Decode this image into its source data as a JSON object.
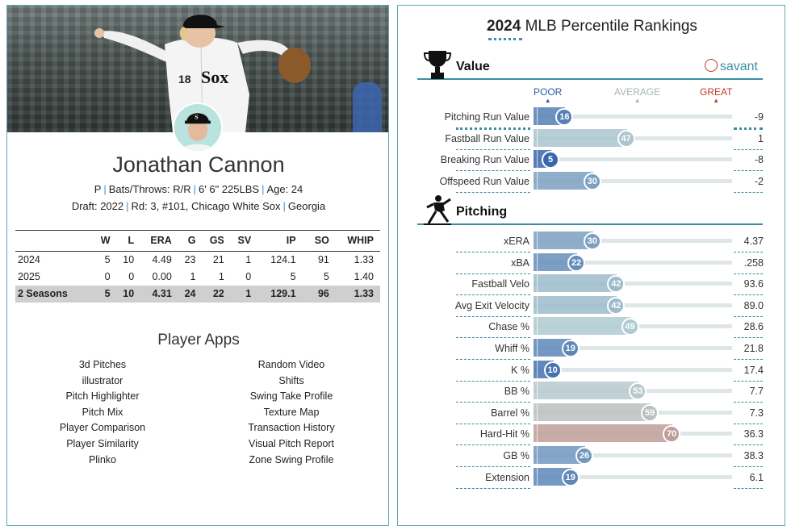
{
  "player": {
    "name": "Jonathan Cannon",
    "bio_line1": [
      "P",
      "Bats/Throws: R/R",
      "6' 6\" 225LBS",
      "Age: 24"
    ],
    "bio_line2": [
      "Draft: 2022",
      "Rd: 3, #101, Chicago White Sox",
      "Georgia"
    ]
  },
  "stats": {
    "headers": [
      "",
      "W",
      "L",
      "ERA",
      "G",
      "GS",
      "SV",
      "IP",
      "SO",
      "WHIP"
    ],
    "rows": [
      [
        "2024",
        "5",
        "10",
        "4.49",
        "23",
        "21",
        "1",
        "124.1",
        "91",
        "1.33"
      ],
      [
        "2025",
        "0",
        "0",
        "0.00",
        "1",
        "1",
        "0",
        "5",
        "5",
        "1.40"
      ]
    ],
    "total": [
      "2 Seasons",
      "5",
      "10",
      "4.31",
      "24",
      "22",
      "1",
      "129.1",
      "96",
      "1.33"
    ]
  },
  "apps": {
    "title": "Player Apps",
    "left": [
      "3d Pitches",
      "illustrator",
      "Pitch Highlighter",
      "Pitch Mix",
      "Player Comparison",
      "Player Similarity",
      "Plinko"
    ],
    "right": [
      "Random Video",
      "Shifts",
      "Swing Take Profile",
      "Texture Map",
      "Transaction History",
      "Visual Pitch Report",
      "Zone Swing Profile"
    ]
  },
  "rankings": {
    "title_year": "2024",
    "title_rest": " MLB Percentile Rankings",
    "brand": "savant",
    "scale": {
      "poor": "POOR",
      "average": "AVERAGE",
      "great": "GREAT"
    },
    "colors": {
      "poor": "#2b5ca8",
      "average": "#9aa8a8",
      "great": "#c0392b"
    },
    "sections": [
      {
        "label": "Value",
        "icon": "trophy-icon",
        "rows": [
          {
            "metric": "Pitching Run Value",
            "pct": 16,
            "value": "-9"
          },
          {
            "metric": "Fastball Run Value",
            "pct": 47,
            "value": "1"
          },
          {
            "metric": "Breaking Run Value",
            "pct": 5,
            "value": "-8"
          },
          {
            "metric": "Offspeed Run Value",
            "pct": 30,
            "value": "-2"
          }
        ]
      },
      {
        "label": "Pitching",
        "icon": "pitcher-icon",
        "rows": [
          {
            "metric": "xERA",
            "pct": 30,
            "value": "4.37"
          },
          {
            "metric": "xBA",
            "pct": 22,
            "value": ".258"
          },
          {
            "metric": "Fastball Velo",
            "pct": 42,
            "value": "93.6"
          },
          {
            "metric": "Avg Exit Velocity",
            "pct": 42,
            "value": "89.0"
          },
          {
            "metric": "Chase %",
            "pct": 49,
            "value": "28.6"
          },
          {
            "metric": "Whiff %",
            "pct": 19,
            "value": "21.8"
          },
          {
            "metric": "K %",
            "pct": 10,
            "value": "17.4"
          },
          {
            "metric": "BB %",
            "pct": 53,
            "value": "7.7"
          },
          {
            "metric": "Barrel %",
            "pct": 59,
            "value": "7.3"
          },
          {
            "metric": "Hard-Hit %",
            "pct": 70,
            "value": "36.3"
          },
          {
            "metric": "GB %",
            "pct": 26,
            "value": "38.3"
          },
          {
            "metric": "Extension",
            "pct": 19,
            "value": "6.1"
          }
        ]
      }
    ]
  }
}
